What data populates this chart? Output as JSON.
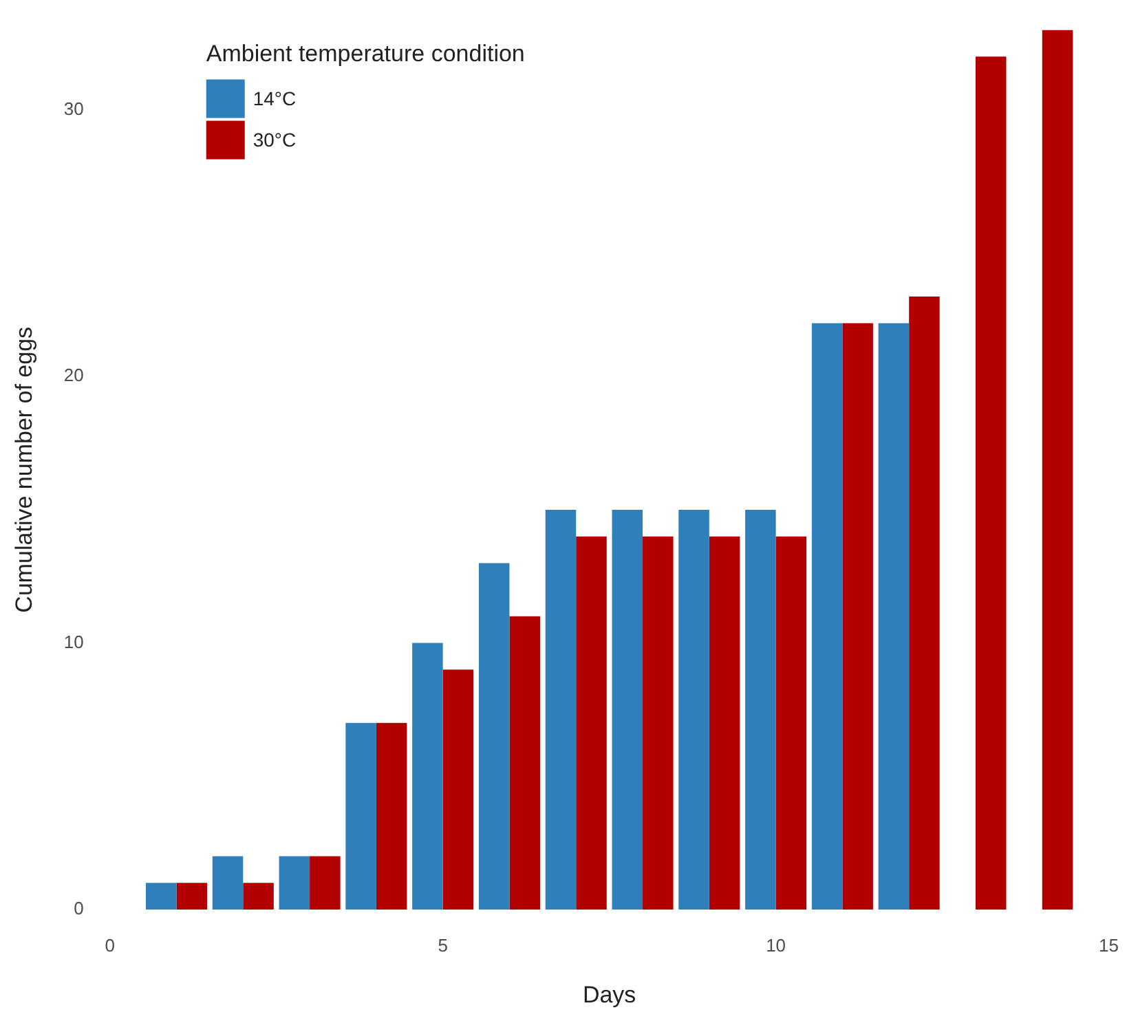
{
  "chart_data": {
    "type": "bar",
    "xlabel": "Days",
    "ylabel": "Cumulative number of eggs",
    "legend_title": "Ambient temperature condition",
    "x": [
      1,
      2,
      3,
      4,
      5,
      6,
      7,
      8,
      9,
      10,
      11,
      12,
      13,
      14
    ],
    "series": [
      {
        "name": "14°C",
        "color": "#2e7fba",
        "values": [
          1,
          2,
          2,
          7,
          10,
          13,
          15,
          15,
          15,
          15,
          22,
          22,
          null,
          null
        ]
      },
      {
        "name": "30°C",
        "color": "#b20000",
        "values": [
          1,
          1,
          2,
          7,
          9,
          11,
          14,
          14,
          14,
          14,
          22,
          23,
          32,
          33
        ]
      }
    ],
    "xlim": [
      0,
      15
    ],
    "xticks": [
      0,
      5,
      10,
      15
    ],
    "ylim": [
      0,
      33
    ],
    "yticks": [
      0,
      10,
      20,
      30
    ],
    "grid": false,
    "legend": "top left"
  }
}
